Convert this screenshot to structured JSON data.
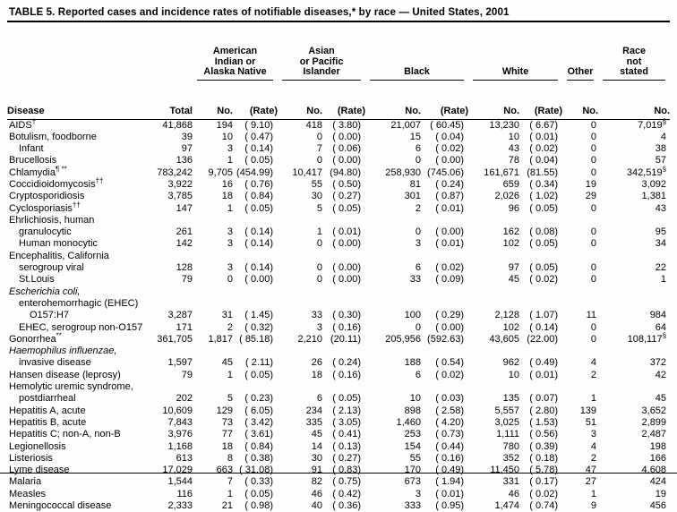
{
  "table": {
    "title": "TABLE 5. Reported cases and incidence rates of notifiable diseases,* by race — United States, 2001",
    "header": {
      "disease": "Disease",
      "total": "Total",
      "no": "No.",
      "rate": "(Rate)",
      "groups": [
        {
          "label": "American\nIndian or\nAlaska Native"
        },
        {
          "label": "Asian\nor Pacific Islander"
        },
        {
          "label": "Black"
        },
        {
          "label": "White"
        },
        {
          "label": "Other"
        },
        {
          "label": "Race\nnot\nstated"
        }
      ]
    },
    "rows": [
      {
        "name": "AIDS",
        "marker": "†",
        "total": "41,868",
        "values": [
          "194",
          "( 9.10)",
          "418",
          "( 3.80)",
          "21,007",
          "( 60.45)",
          "13,230",
          "( 6.67)",
          "0",
          "7,019§"
        ]
      },
      {
        "name": "Botulism, foodborne",
        "total": "39",
        "values": [
          "10",
          "( 0.47)",
          "0",
          "( 0.00)",
          "15",
          "( 0.04)",
          "10",
          "( 0.01)",
          "0",
          "4"
        ]
      },
      {
        "name": "Infant",
        "indent": 1,
        "total": "97",
        "values": [
          "3",
          "( 0.14)",
          "7",
          "( 0.06)",
          "6",
          "( 0.02)",
          "43",
          "( 0.02)",
          "0",
          "38"
        ]
      },
      {
        "name": "Brucellosis",
        "total": "136",
        "values": [
          "1",
          "( 0.05)",
          "0",
          "( 0.00)",
          "0",
          "( 0.00)",
          "78",
          "( 0.04)",
          "0",
          "57"
        ]
      },
      {
        "name": "Chlamydia",
        "marker": "¶ **",
        "total": "783,242",
        "values": [
          "9,705",
          "(454.99)",
          "10,417",
          "(94.80)",
          "258,930",
          "(745.06)",
          "161,671",
          "(81.55)",
          "0",
          "342,519§"
        ]
      },
      {
        "name": "Coccidioidomycosis",
        "marker": "††",
        "total": "3,922",
        "values": [
          "16",
          "( 0.76)",
          "55",
          "( 0.50)",
          "81",
          "( 0.24)",
          "659",
          "( 0.34)",
          "19",
          "3,092"
        ]
      },
      {
        "name": "Cryptosporidiosis",
        "total": "3,785",
        "values": [
          "18",
          "( 0.84)",
          "30",
          "( 0.27)",
          "301",
          "( 0.87)",
          "2,026",
          "( 1.02)",
          "29",
          "1,381"
        ]
      },
      {
        "name": "Cyclosporiasis",
        "marker": "††",
        "total": "147",
        "values": [
          "1",
          "( 0.05)",
          "5",
          "( 0.05)",
          "2",
          "( 0.01)",
          "96",
          "( 0.05)",
          "0",
          "43"
        ]
      },
      {
        "name": "Ehrlichiosis, human"
      },
      {
        "name": "granulocytic",
        "indent": 1,
        "total": "261",
        "values": [
          "3",
          "( 0.14)",
          "1",
          "( 0.01)",
          "0",
          "( 0.00)",
          "162",
          "( 0.08)",
          "0",
          "95"
        ]
      },
      {
        "name": "Human monocytic",
        "indent": 1,
        "total": "142",
        "values": [
          "3",
          "( 0.14)",
          "0",
          "( 0.00)",
          "3",
          "( 0.01)",
          "102",
          "( 0.05)",
          "0",
          "34"
        ]
      },
      {
        "name": "Encephalitis, California"
      },
      {
        "name": "serogroup viral",
        "indent": 1,
        "total": "128",
        "values": [
          "3",
          "( 0.14)",
          "0",
          "( 0.00)",
          "6",
          "( 0.02)",
          "97",
          "( 0.05)",
          "0",
          "22"
        ]
      },
      {
        "name": "St.Louis",
        "indent": 1,
        "total": "79",
        "values": [
          "0",
          "( 0.00)",
          "0",
          "( 0.00)",
          "33",
          "( 0.09)",
          "45",
          "( 0.02)",
          "0",
          "1"
        ]
      },
      {
        "name": "Escherichia coli,",
        "italic": true
      },
      {
        "name": "enterohemorrhagic (EHEC)",
        "indent": 1
      },
      {
        "name": "O157:H7",
        "indent": 2,
        "total": "3,287",
        "values": [
          "31",
          "( 1.45)",
          "33",
          "( 0.30)",
          "100",
          "( 0.29)",
          "2,128",
          "( 1.07)",
          "11",
          "984"
        ]
      },
      {
        "name": "EHEC, serogroup non-O157",
        "indent": 1,
        "total": "171",
        "values": [
          "2",
          "( 0.32)",
          "3",
          "( 0.16)",
          "0",
          "( 0.00)",
          "102",
          "( 0.14)",
          "0",
          "64"
        ]
      },
      {
        "name": "Gonorrhea",
        "marker": "**",
        "total": "361,705",
        "values": [
          "1,817",
          "( 85.18)",
          "2,210",
          "(20.11)",
          "205,956",
          "(592.63)",
          "43,605",
          "(22.00)",
          "0",
          "108,117§"
        ]
      },
      {
        "name": "Haemophilus influenzae,",
        "italic": true
      },
      {
        "name": "invasive disease",
        "indent": 1,
        "total": "1,597",
        "values": [
          "45",
          "( 2.11)",
          "26",
          "( 0.24)",
          "188",
          "( 0.54)",
          "962",
          "( 0.49)",
          "4",
          "372"
        ]
      },
      {
        "name": "Hansen disease (leprosy)",
        "total": "79",
        "values": [
          "1",
          "( 0.05)",
          "18",
          "( 0.16)",
          "6",
          "( 0.02)",
          "10",
          "( 0.01)",
          "2",
          "42"
        ]
      },
      {
        "name": "Hemolytic uremic syndrome,"
      },
      {
        "name": "postdiarrheal",
        "indent": 1,
        "total": "202",
        "values": [
          "5",
          "( 0.23)",
          "6",
          "( 0.05)",
          "10",
          "( 0.03)",
          "135",
          "( 0.07)",
          "1",
          "45"
        ]
      },
      {
        "name": "Hepatitis A, acute",
        "total": "10,609",
        "values": [
          "129",
          "( 6.05)",
          "234",
          "( 2.13)",
          "898",
          "( 2.58)",
          "5,557",
          "( 2.80)",
          "139",
          "3,652"
        ]
      },
      {
        "name": "Hepatitis B, acute",
        "total": "7,843",
        "values": [
          "73",
          "( 3.42)",
          "335",
          "( 3.05)",
          "1,460",
          "( 4.20)",
          "3,025",
          "( 1.53)",
          "51",
          "2,899"
        ]
      },
      {
        "name": "Hepatitis C; non-A, non-B",
        "total": "3,976",
        "values": [
          "77",
          "( 3.61)",
          "45",
          "( 0.41)",
          "253",
          "( 0.73)",
          "1,111",
          "( 0.56)",
          "3",
          "2,487"
        ]
      },
      {
        "name": "Legionellosis",
        "total": "1,168",
        "values": [
          "18",
          "( 0.84)",
          "14",
          "( 0.13)",
          "154",
          "( 0.44)",
          "780",
          "( 0.39)",
          "4",
          "198"
        ]
      },
      {
        "name": "Listeriosis",
        "total": "613",
        "values": [
          "8",
          "( 0.38)",
          "30",
          "( 0.27)",
          "55",
          "( 0.16)",
          "352",
          "( 0.18)",
          "2",
          "166"
        ]
      },
      {
        "name": "Lyme disease",
        "total": "17,029",
        "values": [
          "663",
          "( 31.08)",
          "91",
          "( 0.83)",
          "170",
          "( 0.49)",
          "11,450",
          "( 5.78)",
          "47",
          "4,608"
        ]
      },
      {
        "name": "Malaria",
        "total": "1,544",
        "values": [
          "7",
          "( 0.33)",
          "82",
          "( 0.75)",
          "673",
          "( 1.94)",
          "331",
          "( 0.17)",
          "27",
          "424"
        ]
      },
      {
        "name": "Measles",
        "total": "116",
        "values": [
          "1",
          "( 0.05)",
          "46",
          "( 0.42)",
          "3",
          "( 0.01)",
          "46",
          "( 0.02)",
          "1",
          "19"
        ]
      },
      {
        "name": "Meningococcal disease",
        "total": "2,333",
        "values": [
          "21",
          "( 0.98)",
          "40",
          "( 0.36)",
          "333",
          "( 0.95)",
          "1,474",
          "( 0.74)",
          "9",
          "456"
        ]
      }
    ]
  }
}
